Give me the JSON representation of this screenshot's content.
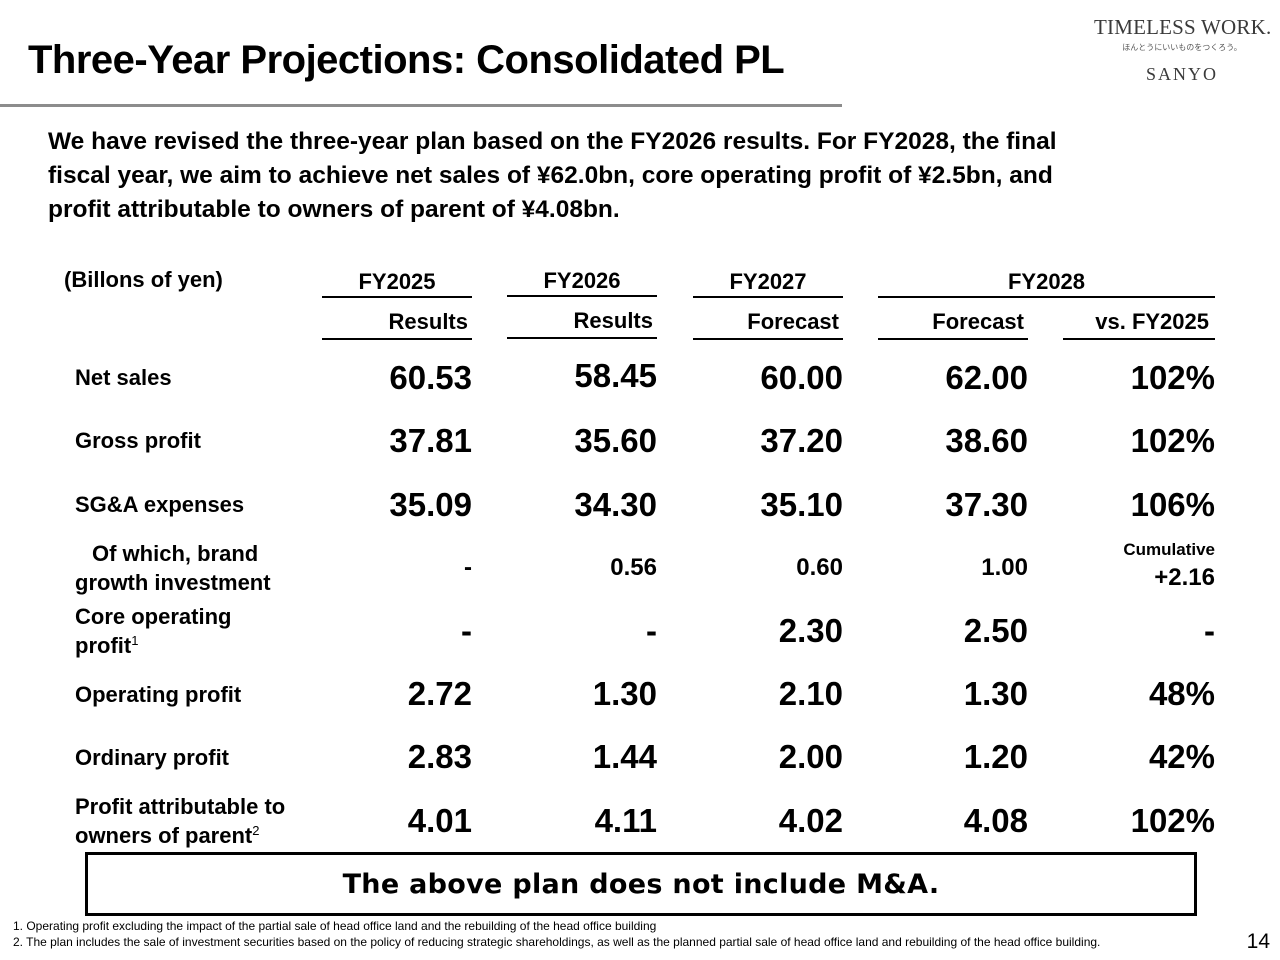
{
  "slide": {
    "title": "Three-Year Projections: Consolidated PL",
    "page_number": "14"
  },
  "logo": {
    "main": "TIMELESS WORK.",
    "tagline": "ほんとうにいいものをつくろう。",
    "brand": "SANYO"
  },
  "intro": {
    "line1": "We have revised the three-year plan based on the FY2026 results. For FY2028, the final",
    "line2": "fiscal year, we aim to achieve net sales of ¥62.0bn, core operating profit of ¥2.5bn, and",
    "line3": "profit attributable to owners of parent of ¥4.08bn."
  },
  "table": {
    "unit_label": "(Billons of yen)",
    "year_headers": {
      "fy2025": "FY2025",
      "fy2026": "FY2026",
      "fy2027": "FY2027",
      "fy2028": "FY2028"
    },
    "sub_headers": {
      "fy2025": "Results",
      "fy2026": "Results",
      "fy2027": "Forecast",
      "fy2028": "Forecast",
      "vs": "vs. FY2025"
    },
    "rows": {
      "net_sales": {
        "label": "Net sales",
        "values": [
          "60.53",
          "58.45",
          "60.00",
          "62.00",
          "102%"
        ]
      },
      "gross_profit": {
        "label": "Gross profit",
        "values": [
          "37.81",
          "35.60",
          "37.20",
          "38.60",
          "102%"
        ]
      },
      "sga": {
        "label": "SG&A expenses",
        "values": [
          "35.09",
          "34.30",
          "35.10",
          "37.30",
          "106%"
        ]
      },
      "brand_investment": {
        "label_line1": "Of which, brand",
        "label_line2": "growth investment",
        "values": [
          "-",
          "0.56",
          "0.60",
          "1.00"
        ],
        "vs_note": "Cumulative",
        "vs_value": "+2.16"
      },
      "core_operating_profit": {
        "label_line1": "Core operating",
        "label_line2": "profit",
        "footnote_ref": "1",
        "values": [
          "-",
          "-",
          "2.30",
          "2.50",
          "-"
        ]
      },
      "operating_profit": {
        "label": "Operating profit",
        "values": [
          "2.72",
          "1.30",
          "2.10",
          "1.30",
          "48%"
        ]
      },
      "ordinary_profit": {
        "label": "Ordinary profit",
        "values": [
          "2.83",
          "1.44",
          "2.00",
          "1.20",
          "42%"
        ]
      },
      "profit_attributable": {
        "label_line1": "Profit attributable to",
        "label_line2": "owners of parent",
        "footnote_ref": "2",
        "values": [
          "4.01",
          "4.11",
          "4.02",
          "4.08",
          "102%"
        ]
      }
    }
  },
  "notice": "The above plan does not include M&A.",
  "footnotes": {
    "note1": "1. Operating profit excluding the impact of the partial sale of head office land and the rebuilding of the head office building",
    "note2": "2. The plan includes the sale of investment securities based on the policy of reducing strategic shareholdings, as well as the planned partial sale of head office land and rebuilding of the head office building."
  }
}
